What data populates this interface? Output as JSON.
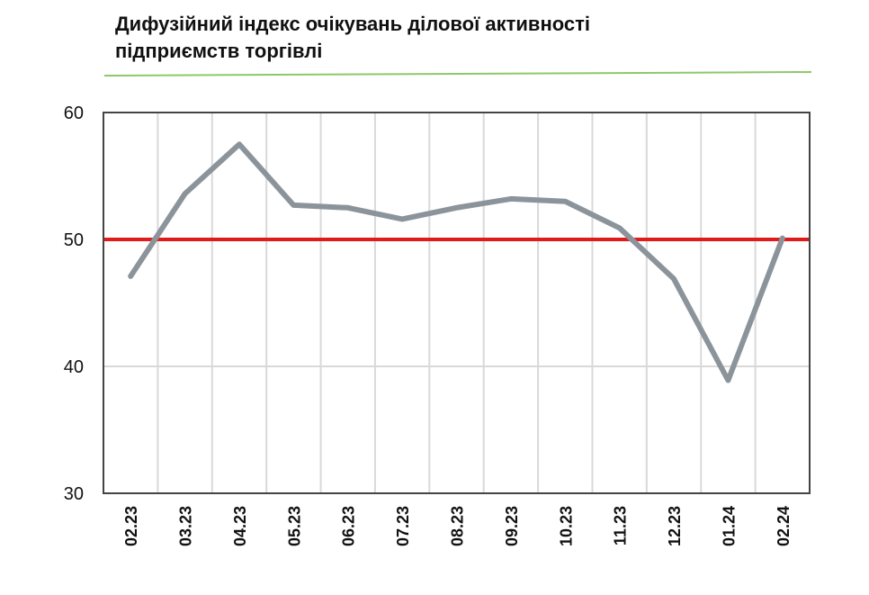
{
  "title_lines": [
    "Дифузійний індекс очікувань ділової активності",
    "підприємств торгівлі"
  ],
  "colors": {
    "title_rule": "#8cc96a",
    "series_line": "#8c949b",
    "threshold_line": "#e01b1b",
    "grid": "#d9d9d9",
    "frame": "#444444"
  },
  "chart_data": {
    "type": "line",
    "categories": [
      "02.23",
      "03.23",
      "04.23",
      "05.23",
      "06.23",
      "07.23",
      "08.23",
      "09.23",
      "10.23",
      "11.23",
      "12.23",
      "01.24",
      "02.24"
    ],
    "series": [
      {
        "values": [
          47.1,
          53.6,
          57.5,
          52.7,
          52.5,
          51.6,
          52.5,
          53.2,
          53.0,
          50.9,
          46.9,
          38.9,
          50.1
        ]
      }
    ],
    "reference_line": {
      "value": 50
    },
    "yticks": [
      30,
      40,
      50,
      60
    ],
    "ylim": [
      30,
      60
    ],
    "grid": true,
    "xlabel": "",
    "ylabel": ""
  }
}
